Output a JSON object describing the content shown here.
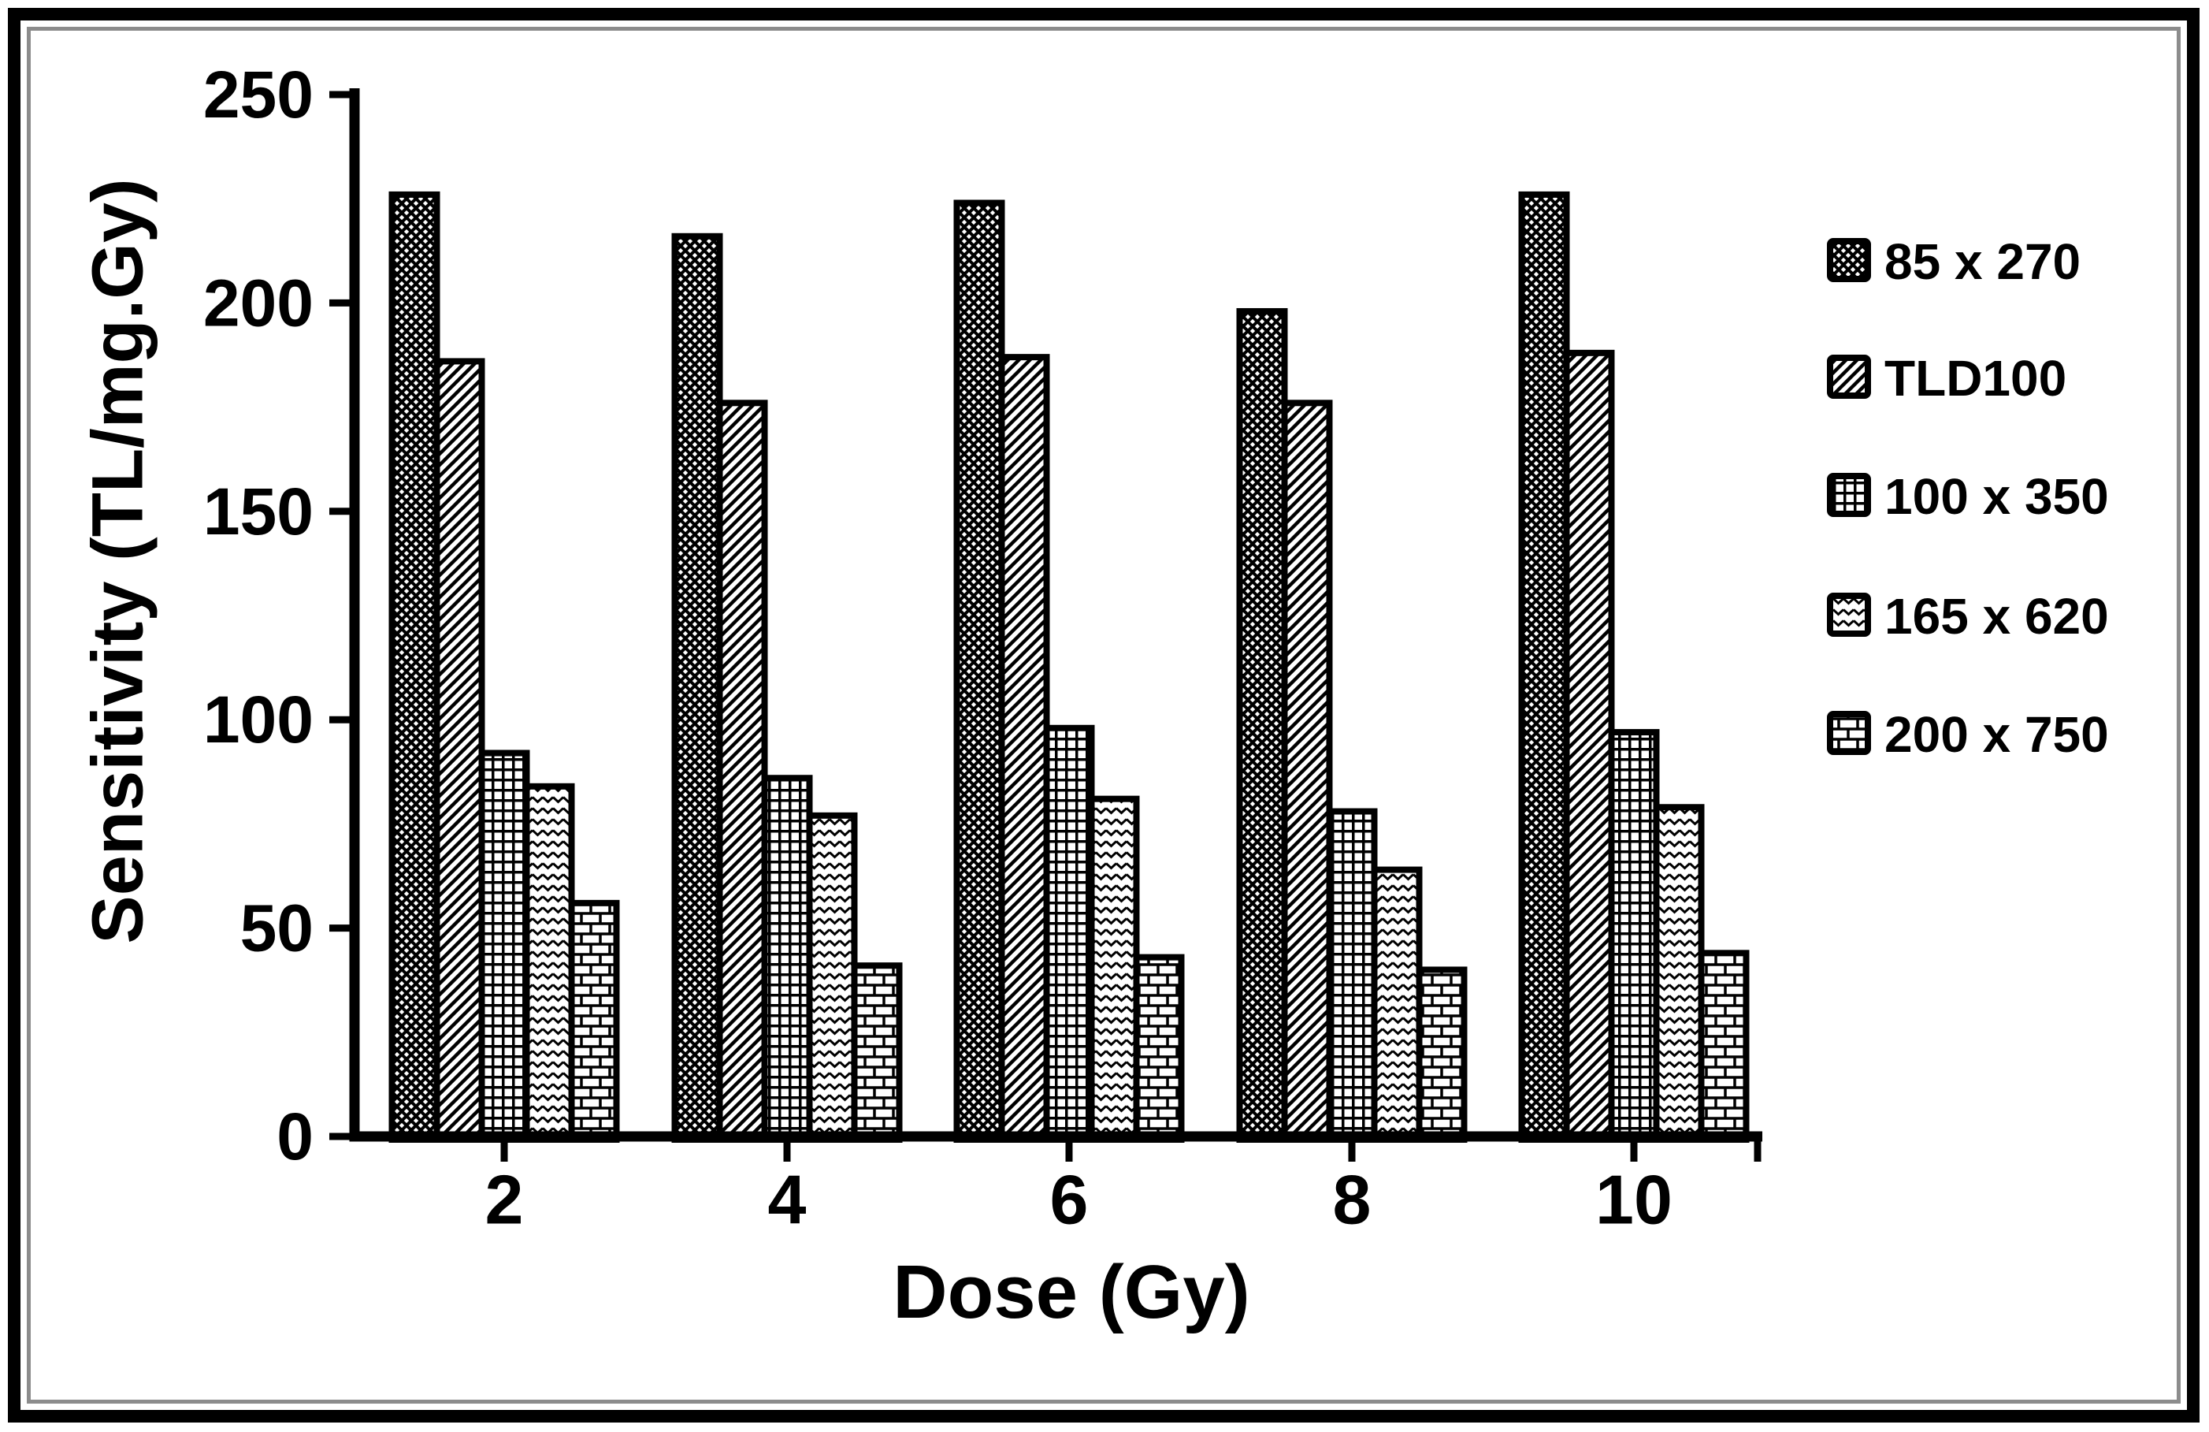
{
  "figure": {
    "background": "#ffffff",
    "ink_color": "#000000",
    "frame_gray": "#8c8c8c"
  },
  "chart_data": {
    "type": "bar",
    "title": "",
    "xlabel": "Dose (Gy)",
    "ylabel": "Sensitivity (TL/mg.Gy)",
    "categories": [
      "2",
      "4",
      "6",
      "8",
      "10"
    ],
    "series": [
      {
        "name": "85 x 270",
        "pattern": "diamond-crosshatch",
        "values": [
          226,
          216,
          224,
          198,
          226
        ]
      },
      {
        "name": "TLD100",
        "pattern": "diagonal-stripes",
        "values": [
          186,
          176,
          187,
          176,
          188
        ]
      },
      {
        "name": "100 x 350",
        "pattern": "grid",
        "values": [
          92,
          86,
          98,
          78,
          97
        ]
      },
      {
        "name": "165 x 620",
        "pattern": "chevron-waves",
        "values": [
          84,
          77,
          81,
          64,
          79
        ]
      },
      {
        "name": "200 x 750",
        "pattern": "bricks",
        "values": [
          56,
          41,
          43,
          40,
          44
        ]
      }
    ],
    "ylim": [
      0,
      250
    ],
    "yticks": [
      0,
      50,
      100,
      150,
      200,
      250
    ],
    "grid": false,
    "legend_position": "right",
    "bar_outline_color": "#000000"
  }
}
